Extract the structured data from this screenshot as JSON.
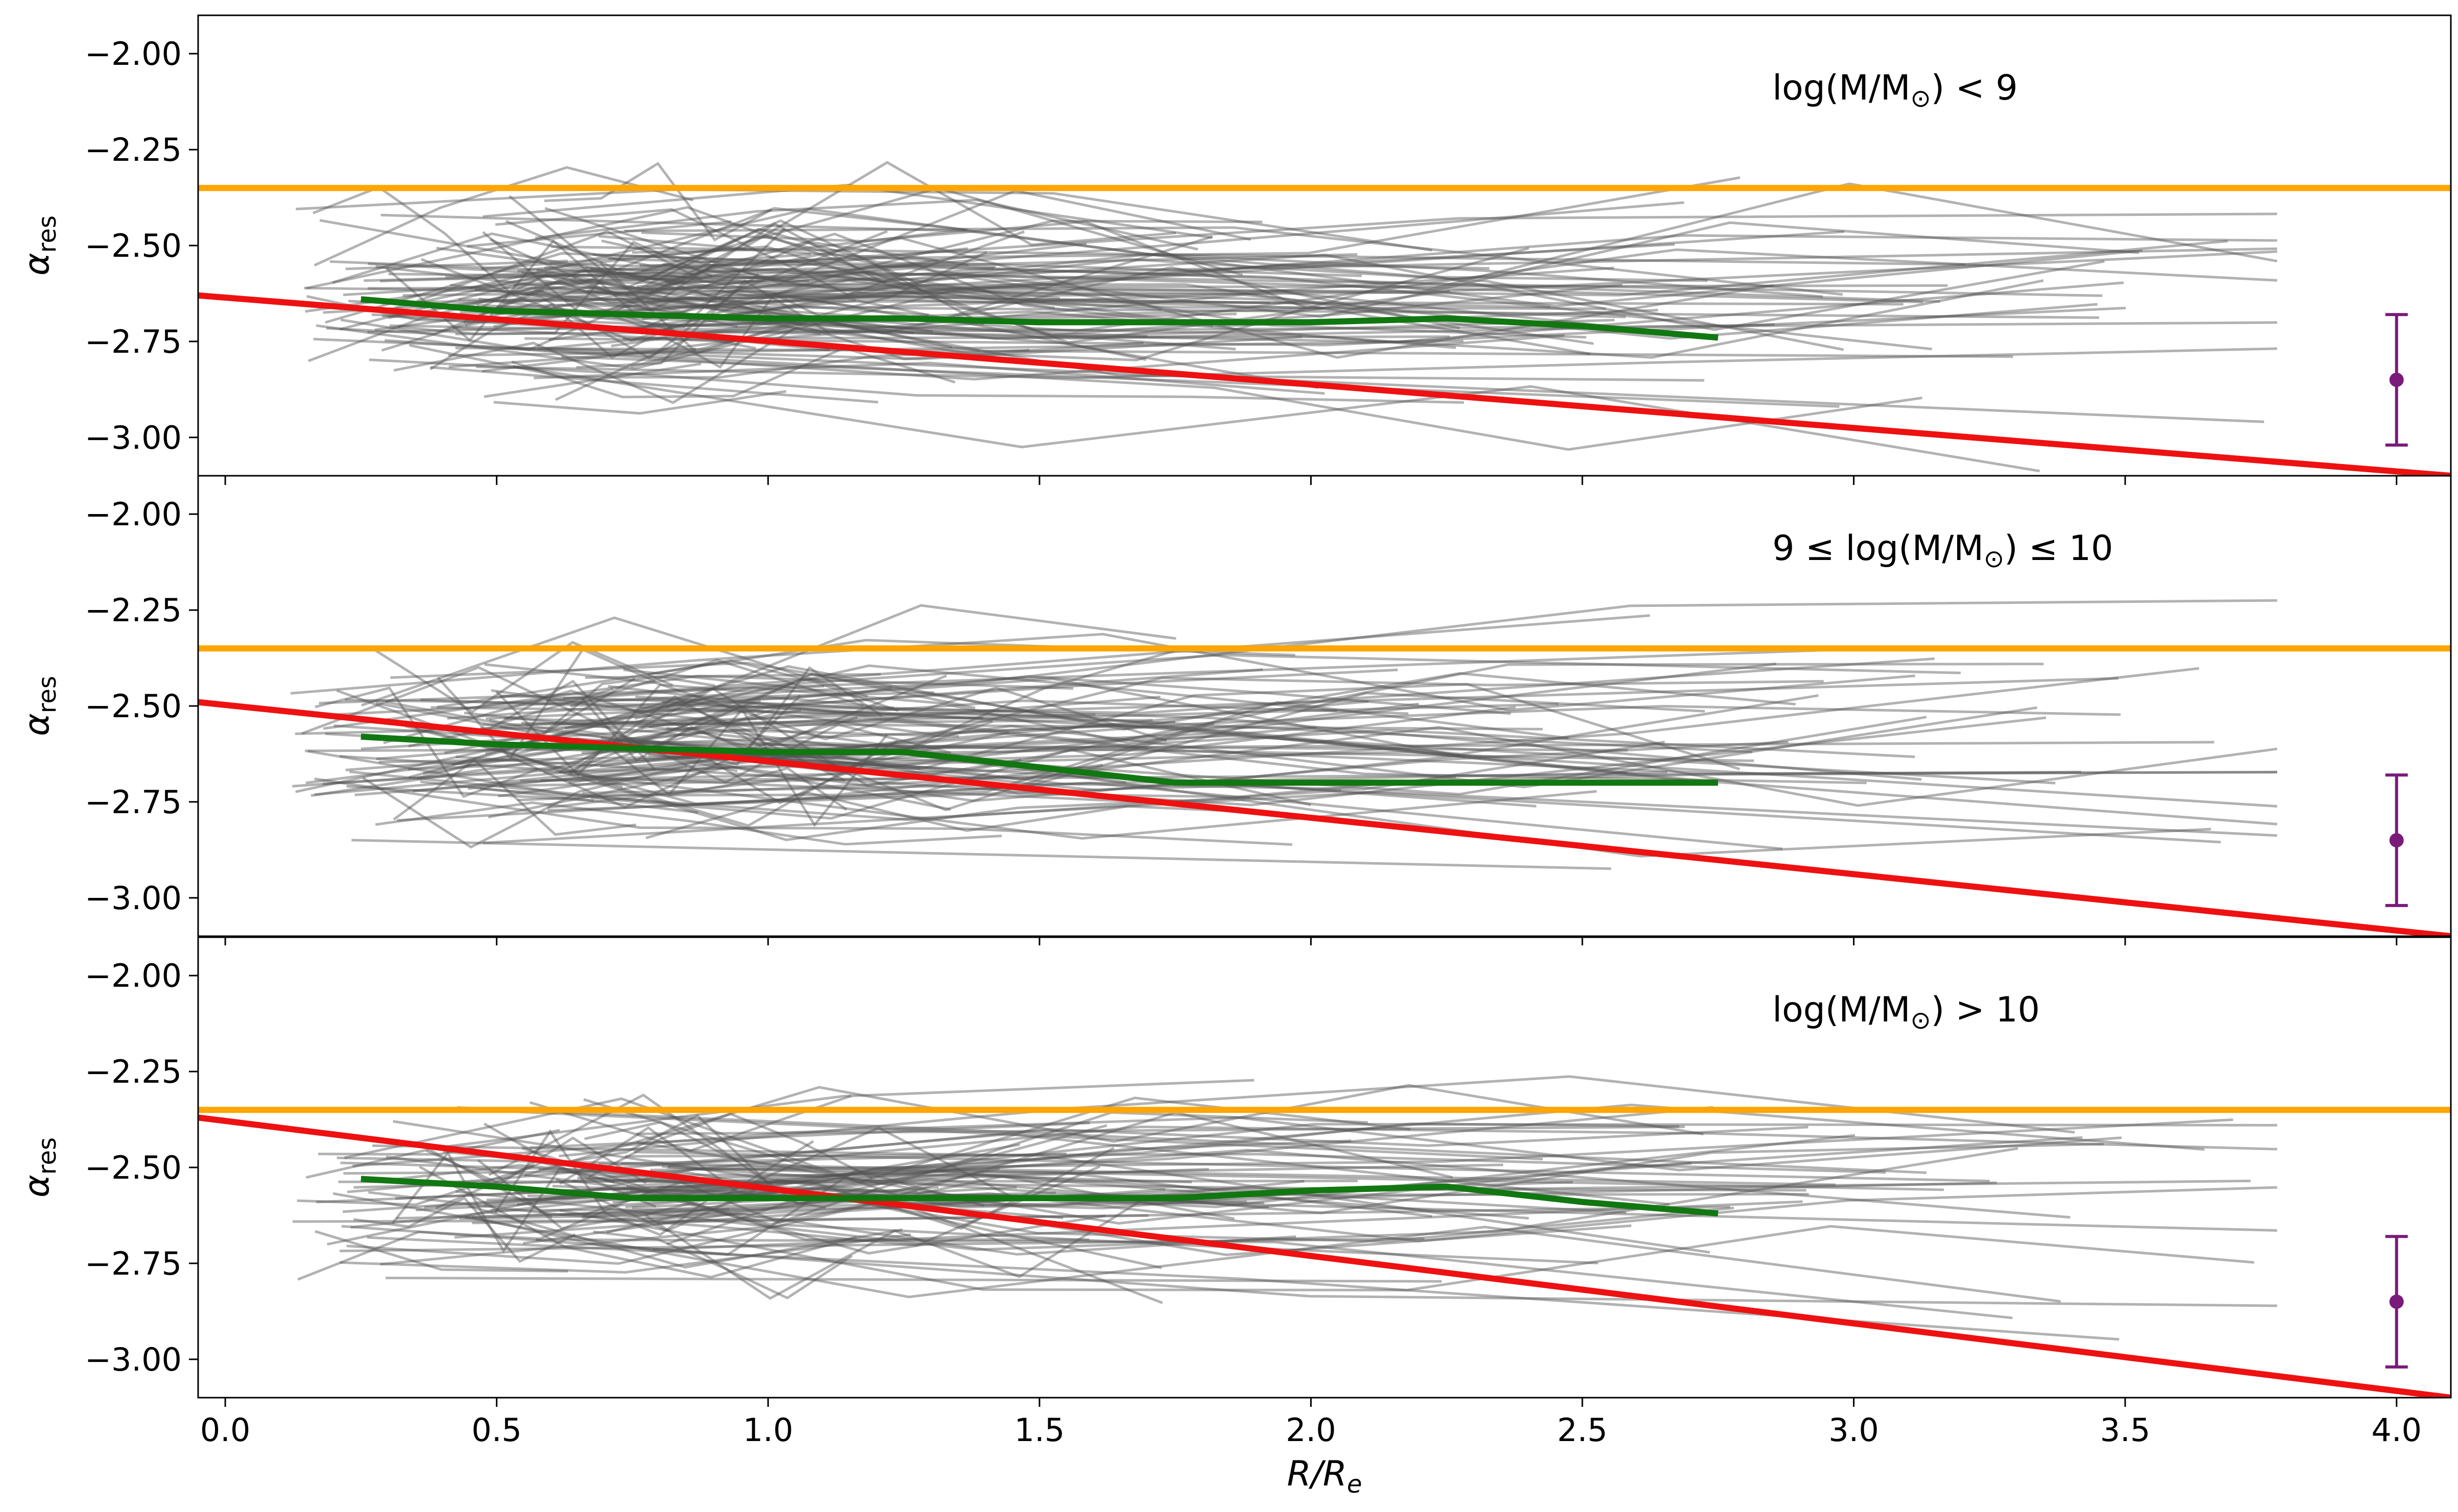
{
  "chart_data": {
    "type": "line",
    "xlabel": "R/R_e",
    "x_label_parts": {
      "main": "R",
      "sep": "/",
      "second": "R",
      "sub": "e"
    },
    "ylabel_main": "α",
    "ylabel_sub": "res",
    "xlim": [
      -0.05,
      4.1
    ],
    "ylim": [
      -3.1,
      -1.9
    ],
    "xticks": [
      0.0,
      0.5,
      1.0,
      1.5,
      2.0,
      2.5,
      3.0,
      3.5,
      4.0
    ],
    "xtick_labels": [
      "0.0",
      "0.5",
      "1.0",
      "1.5",
      "2.0",
      "2.5",
      "3.0",
      "3.5",
      "4.0"
    ],
    "yticks": [
      -2.0,
      -2.25,
      -2.5,
      -2.75,
      -3.0
    ],
    "ytick_labels": [
      "−2.00",
      "−2.25",
      "−2.50",
      "−2.75",
      "−3.00"
    ],
    "colors": {
      "reference_line": "#ffa500",
      "fit_line": "#ee1111",
      "median_line": "#117711",
      "individual_lines": "#555555",
      "error_bar": "#7a1a7a"
    },
    "panels": [
      {
        "label_prefix": "",
        "label_mass": "log(M/M",
        "label_suffix": ") < 9",
        "reference_line": {
          "y": -2.35
        },
        "fit_line": {
          "x": [
            -0.05,
            4.1
          ],
          "y": [
            -2.63,
            -3.1
          ]
        },
        "median_line": {
          "x": [
            0.25,
            0.5,
            0.75,
            1.0,
            1.25,
            1.5,
            1.75,
            2.0,
            2.25,
            2.5,
            2.75
          ],
          "y": [
            -2.64,
            -2.67,
            -2.68,
            -2.69,
            -2.69,
            -2.7,
            -2.7,
            -2.7,
            -2.69,
            -2.71,
            -2.74
          ]
        },
        "error_bar": {
          "x": 4.0,
          "y": -2.85,
          "yerr": 0.17
        },
        "seed": 11,
        "n_individual": 140,
        "individual_center": -2.64,
        "individual_spread": 0.15
      },
      {
        "label_prefix": "9 ≤ ",
        "label_mass": "log(M/M",
        "label_suffix": ") ≤ 10",
        "reference_line": {
          "y": -2.35
        },
        "fit_line": {
          "x": [
            -0.05,
            4.1
          ],
          "y": [
            -2.49,
            -3.1
          ]
        },
        "median_line": {
          "x": [
            0.25,
            0.5,
            0.75,
            1.0,
            1.25,
            1.5,
            1.75,
            2.0,
            2.25,
            2.5,
            2.75
          ],
          "y": [
            -2.58,
            -2.6,
            -2.61,
            -2.62,
            -2.62,
            -2.66,
            -2.7,
            -2.7,
            -2.7,
            -2.7,
            -2.7
          ]
        },
        "error_bar": {
          "x": 4.0,
          "y": -2.85,
          "yerr": 0.17
        },
        "seed": 23,
        "n_individual": 130,
        "individual_center": -2.6,
        "individual_spread": 0.14
      },
      {
        "label_prefix": "",
        "label_mass": "log(M/M",
        "label_suffix": ") > 10",
        "reference_line": {
          "y": -2.35
        },
        "fit_line": {
          "x": [
            -0.05,
            4.1
          ],
          "y": [
            -2.37,
            -3.1
          ]
        },
        "median_line": {
          "x": [
            0.25,
            0.5,
            0.75,
            1.0,
            1.25,
            1.5,
            1.75,
            2.0,
            2.25,
            2.5,
            2.75
          ],
          "y": [
            -2.53,
            -2.55,
            -2.58,
            -2.58,
            -2.58,
            -2.58,
            -2.58,
            -2.56,
            -2.55,
            -2.59,
            -2.62
          ]
        },
        "error_bar": {
          "x": 4.0,
          "y": -2.85,
          "yerr": 0.17
        },
        "seed": 37,
        "n_individual": 110,
        "individual_center": -2.57,
        "individual_spread": 0.12
      }
    ]
  }
}
